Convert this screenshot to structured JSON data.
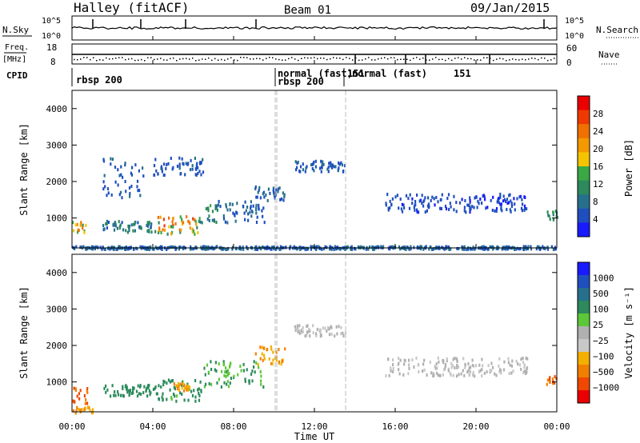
{
  "header": {
    "title": "Halley (fitACF)",
    "beam": "Beam 01",
    "date": "09/Jan/2015"
  },
  "top_panels": {
    "nsky_label": "N.Sky",
    "nsky_ticks": [
      "10^5",
      "10^0"
    ],
    "nsearch_label": "N.Search",
    "nsearch_ticks": [
      "10^5",
      "10^0"
    ],
    "freq_label": "Freq.",
    "freq_unit": "[MHz]",
    "freq_ticks": [
      "18",
      "8"
    ],
    "nave_label": "Nave",
    "nave_ticks": [
      "60",
      "0"
    ],
    "cpid_label": "CPID",
    "cpid_segments": [
      "rbsp 200",
      "normal (fast)",
      "rbsp 200",
      "151",
      "normal (fast)",
      "151"
    ]
  },
  "x_axis": {
    "ticks": [
      "00:00",
      "04:00",
      "08:00",
      "12:00",
      "16:00",
      "20:00",
      "00:00"
    ],
    "label": "Time UT"
  },
  "colors": {
    "power_scale": [
      "#1a1aff",
      "#1f4fbf",
      "#27708c",
      "#2c8a5c",
      "#3aa844",
      "#f5c400",
      "#f49a00",
      "#f07000",
      "#ee3a00",
      "#ea0000"
    ],
    "velocity_scale": [
      "#ea0000",
      "#f04800",
      "#f28000",
      "#f4b000",
      "#c8c8c8",
      "#b0b0b0",
      "#5cc838",
      "#2c8a5c",
      "#27708c",
      "#1f4fbf",
      "#1a1aff"
    ],
    "ground_scatter": "#999999"
  },
  "chart_data": [
    {
      "type": "heatmap",
      "name": "power",
      "xlabel": "Time UT",
      "ylabel": "Slant Range [km]",
      "x_ticks": [
        "00:00",
        "04:00",
        "08:00",
        "12:00",
        "16:00",
        "20:00",
        "00:00"
      ],
      "y_ticks": [
        "1000",
        "2000",
        "3000",
        "4000"
      ],
      "ylim": [
        180,
        4500
      ],
      "colorbar_label": "Power [dB]",
      "colorbar_ticks": [
        "28",
        "24",
        "20",
        "16",
        "12",
        "8",
        "4"
      ],
      "colorbar_range": [
        0,
        30
      ],
      "regions": [
        {
          "t0": 0.0,
          "t1": 0.7,
          "r0": 600,
          "r1": 950,
          "v": 16
        },
        {
          "t0": 1.5,
          "t1": 4.0,
          "r0": 650,
          "r1": 950,
          "v": 8
        },
        {
          "t0": 4.0,
          "t1": 6.2,
          "r0": 600,
          "r1": 1100,
          "v": 18
        },
        {
          "t0": 6.2,
          "t1": 7.2,
          "r0": 900,
          "r1": 1400,
          "v": 10
        },
        {
          "t0": 7.2,
          "t1": 9.5,
          "r0": 900,
          "r1": 1500,
          "v": 6
        },
        {
          "t0": 9.0,
          "t1": 10.5,
          "r0": 1500,
          "r1": 1900,
          "v": 6
        },
        {
          "t0": 1.5,
          "t1": 3.5,
          "r0": 1600,
          "r1": 2700,
          "v": 5
        },
        {
          "t0": 4.0,
          "t1": 6.5,
          "r0": 2200,
          "r1": 2700,
          "v": 5
        },
        {
          "t0": 11.0,
          "t1": 13.5,
          "r0": 2300,
          "r1": 2600,
          "v": 5
        },
        {
          "t0": 15.5,
          "t1": 22.5,
          "r0": 1200,
          "r1": 1700,
          "v": 4
        },
        {
          "t0": 23.4,
          "t1": 24.0,
          "r0": 950,
          "r1": 1250,
          "v": 10
        },
        {
          "t0": 0.0,
          "t1": 24.0,
          "r0": 180,
          "r1": 260,
          "v": 6
        }
      ]
    },
    {
      "type": "heatmap",
      "name": "velocity",
      "xlabel": "Time UT",
      "ylabel": "Slant Range [km]",
      "x_ticks": [
        "00:00",
        "04:00",
        "08:00",
        "12:00",
        "16:00",
        "20:00",
        "00:00"
      ],
      "y_ticks": [
        "1000",
        "2000",
        "3000",
        "4000"
      ],
      "ylim": [
        180,
        4500
      ],
      "colorbar_label": "Velocity [m s⁻¹]",
      "colorbar_ticks": [
        "1000",
        "500",
        "100",
        "25",
        "−25",
        "−100",
        "−500",
        "−1000"
      ],
      "regions": [
        {
          "t0": 0.0,
          "t1": 0.8,
          "r0": 450,
          "r1": 900,
          "v": -500
        },
        {
          "t0": 0.0,
          "t1": 1.0,
          "r0": 180,
          "r1": 350,
          "v": -100
        },
        {
          "t0": 1.5,
          "t1": 4.0,
          "r0": 650,
          "r1": 950,
          "v": 300
        },
        {
          "t0": 4.0,
          "t1": 6.5,
          "r0": 500,
          "r1": 1100,
          "v": 150
        },
        {
          "t0": 5.0,
          "t1": 6.0,
          "r0": 800,
          "r1": 1000,
          "v": -100
        },
        {
          "t0": 6.5,
          "t1": 9.5,
          "r0": 900,
          "r1": 1600,
          "v": 100
        },
        {
          "t0": 9.0,
          "t1": 10.5,
          "r0": 1500,
          "r1": 2000,
          "v": -100
        },
        {
          "t0": 11.0,
          "t1": 13.5,
          "r0": 2300,
          "r1": 2600,
          "v": 0
        },
        {
          "t0": 15.5,
          "t1": 22.5,
          "r0": 1200,
          "r1": 1700,
          "v": 0
        },
        {
          "t0": 23.4,
          "t1": 24.0,
          "r0": 950,
          "r1": 1250,
          "v": -500
        }
      ]
    }
  ]
}
